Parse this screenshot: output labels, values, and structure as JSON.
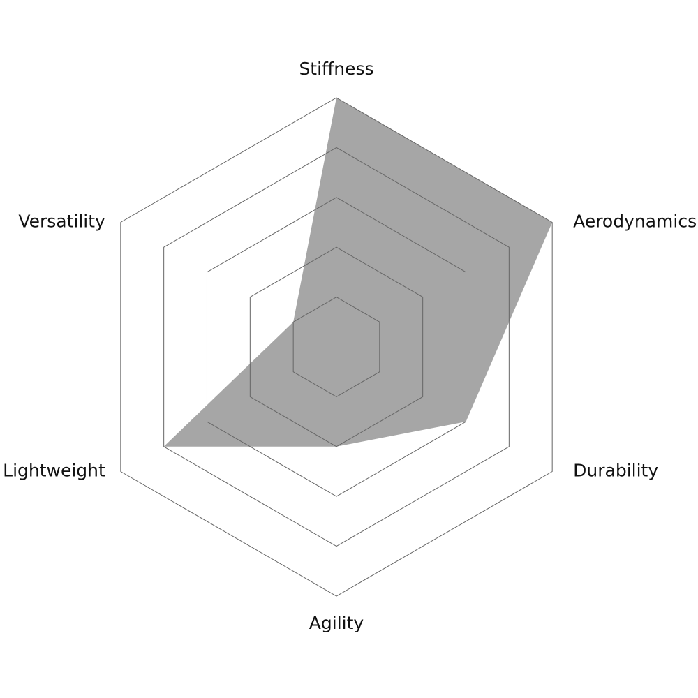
{
  "chart_data": {
    "type": "radar",
    "categories": [
      "Stiffness",
      "Aerodynamics",
      "Durability",
      "Agility",
      "Lightweight",
      "Versatility"
    ],
    "values": [
      5,
      5,
      3,
      2,
      4,
      1
    ],
    "color": "#a6a6a6",
    "ylim": [
      0,
      5
    ],
    "yticks": [
      1,
      2,
      3,
      4,
      5
    ],
    "grid": true
  }
}
